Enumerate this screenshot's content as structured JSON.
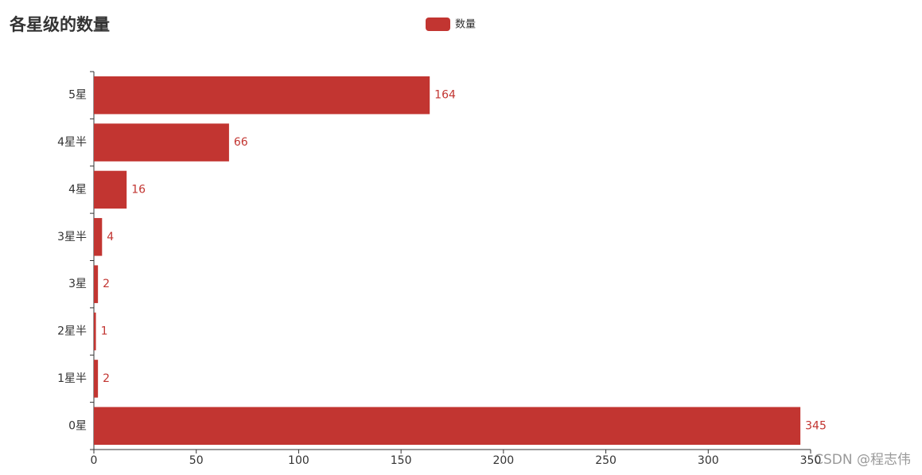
{
  "chart_data": {
    "type": "bar",
    "orientation": "horizontal",
    "title": "各星级的数量",
    "categories": [
      "0星",
      "1星半",
      "2星半",
      "3星",
      "3星半",
      "4星",
      "4星半",
      "5星"
    ],
    "series": [
      {
        "name": "数量",
        "color": "#c23531",
        "values": [
          345,
          2,
          1,
          2,
          4,
          16,
          66,
          164
        ]
      }
    ],
    "xlim": [
      0,
      350
    ],
    "xticks": [
      0,
      50,
      100,
      150,
      200,
      250,
      300,
      350
    ],
    "legend": "top",
    "watermark": "CSDN @程志伟"
  }
}
